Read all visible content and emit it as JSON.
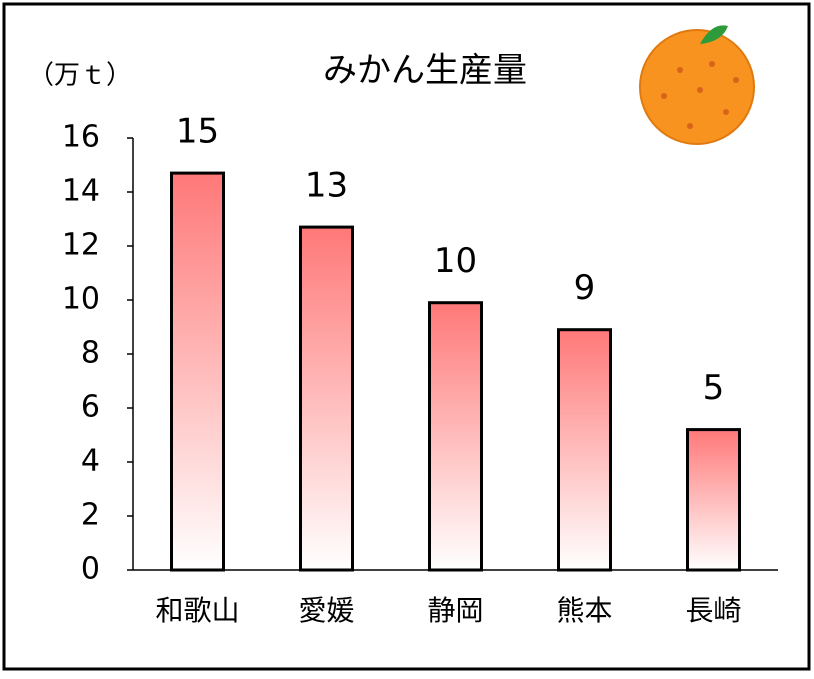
{
  "chart_data": {
    "type": "bar",
    "title": "みかん生産量",
    "y_label": "（万ｔ）",
    "categories": [
      "和歌山",
      "愛媛",
      "静岡",
      "熊本",
      "長崎"
    ],
    "values": [
      14.7,
      12.7,
      9.9,
      8.9,
      5.2
    ],
    "value_labels": [
      "15",
      "13",
      "10",
      "9",
      "5"
    ],
    "color": "#ff7878",
    "ylim": [
      0,
      16
    ],
    "yticks": [
      0,
      2,
      4,
      6,
      8,
      10,
      12,
      14,
      16
    ]
  }
}
